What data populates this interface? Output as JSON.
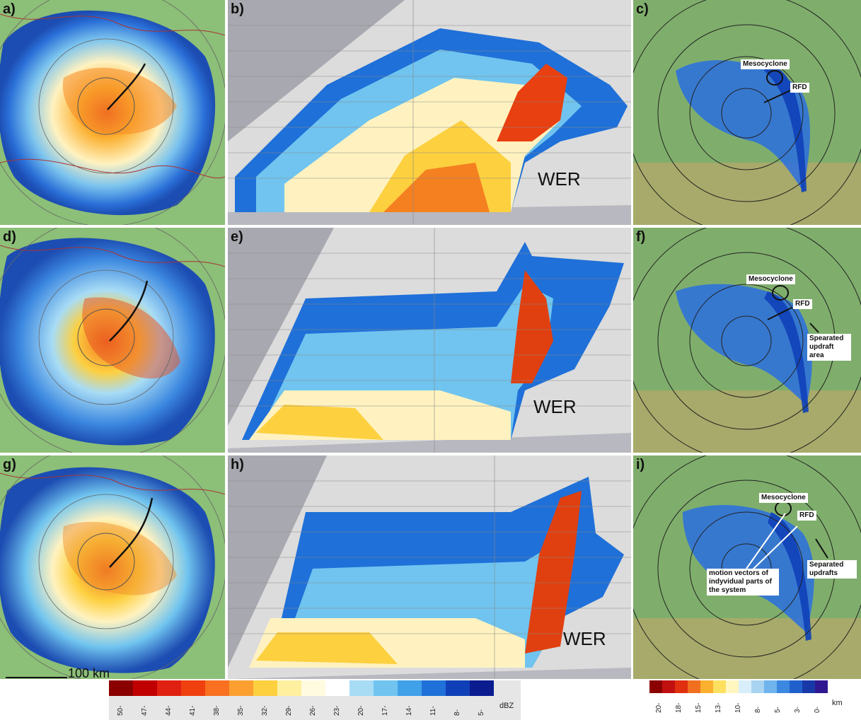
{
  "panels": {
    "a": {
      "label": "a)"
    },
    "b": {
      "label": "b)",
      "wer": "WER"
    },
    "c": {
      "label": "c)"
    },
    "d": {
      "label": "d)"
    },
    "e": {
      "label": "e)",
      "wer": "WER"
    },
    "f": {
      "label": "f)"
    },
    "g": {
      "label": "g)"
    },
    "h": {
      "label": "h)",
      "wer": "WER"
    },
    "i": {
      "label": "i)"
    }
  },
  "annotations": {
    "c_mesocyclone": "Mesocyclone",
    "c_rfd": "RFD",
    "f_mesocyclone": "Mesocyclone",
    "f_rfd": "RFD",
    "f_separated": "Spearated updraft area",
    "i_mesocyclone": "Mesocyclone",
    "i_rfd": "RFD",
    "i_separated": "Separated updrafts",
    "i_motion": "motion vectors of indyvidual parts of the system"
  },
  "scale_bar": {
    "label": "100 km"
  },
  "reflectivity_colorbar": {
    "unit": "dBZ",
    "ticks": [
      "50",
      "47",
      "44",
      "41",
      "38",
      "35",
      "32",
      "29",
      "26",
      "23",
      "20",
      "17",
      "14",
      "11",
      "8",
      "5"
    ],
    "colors": [
      "#8b0000",
      "#c00000",
      "#e02010",
      "#f04010",
      "#f87020",
      "#fba030",
      "#fdd040",
      "#fff0a0",
      "#fffbe0",
      "#ffffff",
      "#a8dcf5",
      "#70c4ef",
      "#40a0e8",
      "#1f70d8",
      "#1040b8",
      "#0a1c90"
    ]
  },
  "height_colorbar": {
    "unit": "km",
    "ticks": [
      "20",
      "18",
      "15",
      "13",
      "10",
      "8",
      "5",
      "3",
      "0"
    ],
    "colors": [
      "#8b0000",
      "#c01010",
      "#e03010",
      "#f07020",
      "#fbb030",
      "#fde060",
      "#fff6c0",
      "#d8eefa",
      "#a8d4f2",
      "#6fb4ec",
      "#3c88e0",
      "#2060cc",
      "#1838a8",
      "#301890"
    ]
  }
}
